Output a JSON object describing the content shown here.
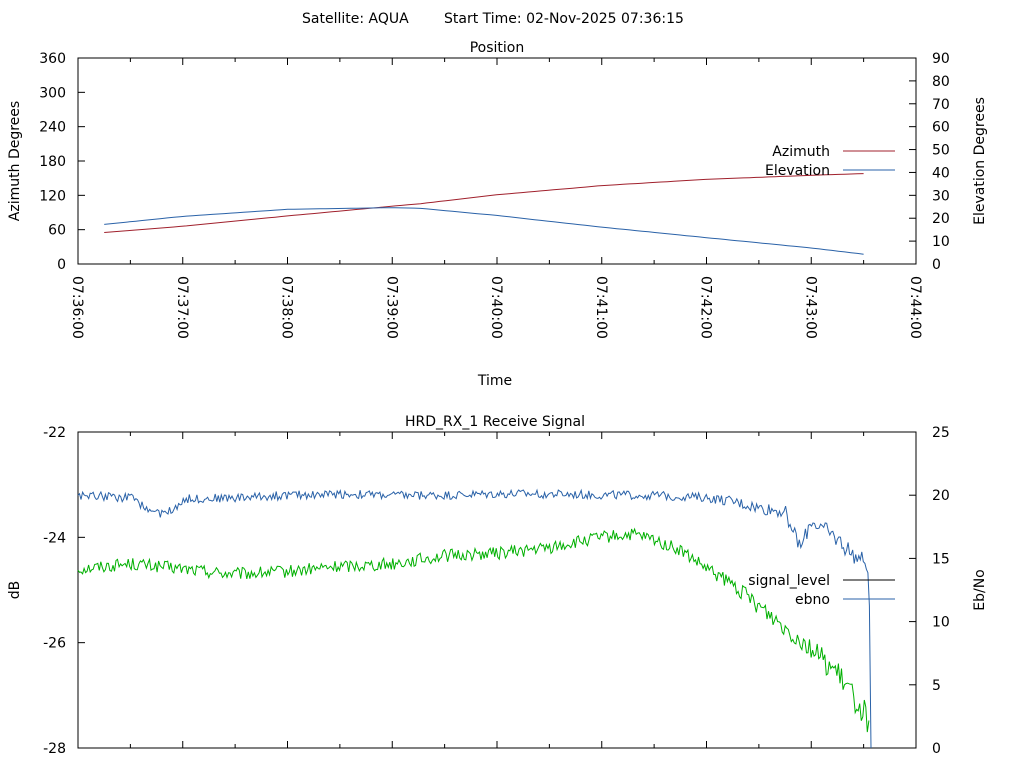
{
  "header": {
    "satellite_label": "Satellite: AQUA",
    "start_time_label": "Start Time: 02-Nov-2025 07:36:15"
  },
  "chart_data": [
    {
      "type": "line",
      "title": "Position",
      "xlabel": "Time",
      "ylabel": "Azimuth Degrees",
      "y2label": "Elevation Degrees",
      "x_ticks": [
        "07:36:00",
        "07:37:00",
        "07:38:00",
        "07:39:00",
        "07:40:00",
        "07:41:00",
        "07:42:00",
        "07:43:00",
        "07:44:00"
      ],
      "xlim_min": [
        0,
        8
      ],
      "ylim": [
        0,
        360
      ],
      "y_ticks": [
        0,
        60,
        120,
        180,
        240,
        300,
        360
      ],
      "y2lim": [
        0,
        90
      ],
      "y2_ticks": [
        0,
        10,
        20,
        30,
        40,
        50,
        60,
        70,
        80,
        90
      ],
      "legend_position": "right",
      "series": [
        {
          "name": "Azimuth",
          "axis": "y",
          "color": "#a0202c",
          "x": [
            0.25,
            1.0,
            2.0,
            3.0,
            3.25,
            4.0,
            5.0,
            6.0,
            7.0,
            7.5
          ],
          "values": [
            55,
            66,
            84,
            101,
            105,
            121,
            137,
            148,
            155,
            158
          ]
        },
        {
          "name": "Elevation",
          "axis": "y2",
          "color": "#2a62a8",
          "x": [
            0.25,
            1.0,
            2.0,
            3.0,
            3.25,
            4.0,
            5.0,
            6.0,
            7.0,
            7.5
          ],
          "values": [
            17.3,
            20.8,
            23.9,
            24.6,
            24.4,
            21.2,
            16.1,
            11.5,
            7.0,
            4.3
          ]
        }
      ]
    },
    {
      "type": "line",
      "title": "HRD_RX_1 Receive Signal",
      "ylabel": "dB",
      "y2label": "Eb/No",
      "xlim_min": [
        0,
        8
      ],
      "ylim": [
        -28,
        -22
      ],
      "y_ticks": [
        -28,
        -26,
        -24,
        -22
      ],
      "y2lim": [
        0,
        25
      ],
      "y2_ticks": [
        0,
        5,
        10,
        15,
        20,
        25
      ],
      "legend_position": "right",
      "series": [
        {
          "name": "signal_level",
          "axis": "y",
          "color": "#00b000",
          "x": [
            0,
            0.5,
            1.0,
            1.5,
            2.0,
            2.5,
            3.0,
            3.5,
            4.0,
            4.5,
            5.0,
            5.3,
            5.5,
            5.75,
            6.0,
            6.25,
            6.5,
            6.75,
            7.0,
            7.25,
            7.5,
            7.55
          ],
          "values": [
            -24.6,
            -24.5,
            -24.6,
            -24.7,
            -24.65,
            -24.55,
            -24.5,
            -24.35,
            -24.3,
            -24.2,
            -24.0,
            -23.95,
            -24.05,
            -24.25,
            -24.6,
            -24.9,
            -25.3,
            -25.7,
            -26.1,
            -26.6,
            -27.3,
            -27.5
          ]
        },
        {
          "name": "ebno",
          "axis": "y2",
          "color": "#2a62a8",
          "x": [
            0,
            0.5,
            0.75,
            0.9,
            1.0,
            1.5,
            2.0,
            2.5,
            3.0,
            3.5,
            4.0,
            4.5,
            5.0,
            5.5,
            6.0,
            6.25,
            6.5,
            6.75,
            6.9,
            7.0,
            7.25,
            7.4,
            7.5,
            7.55,
            7.57
          ],
          "values": [
            20.0,
            19.8,
            18.5,
            18.8,
            19.7,
            19.8,
            20.0,
            20.1,
            20.0,
            20.0,
            20.1,
            20.1,
            20.0,
            20.0,
            19.8,
            19.5,
            19.0,
            18.7,
            15.8,
            18.0,
            16.5,
            15.3,
            14.7,
            14.5,
            0
          ]
        }
      ]
    }
  ]
}
